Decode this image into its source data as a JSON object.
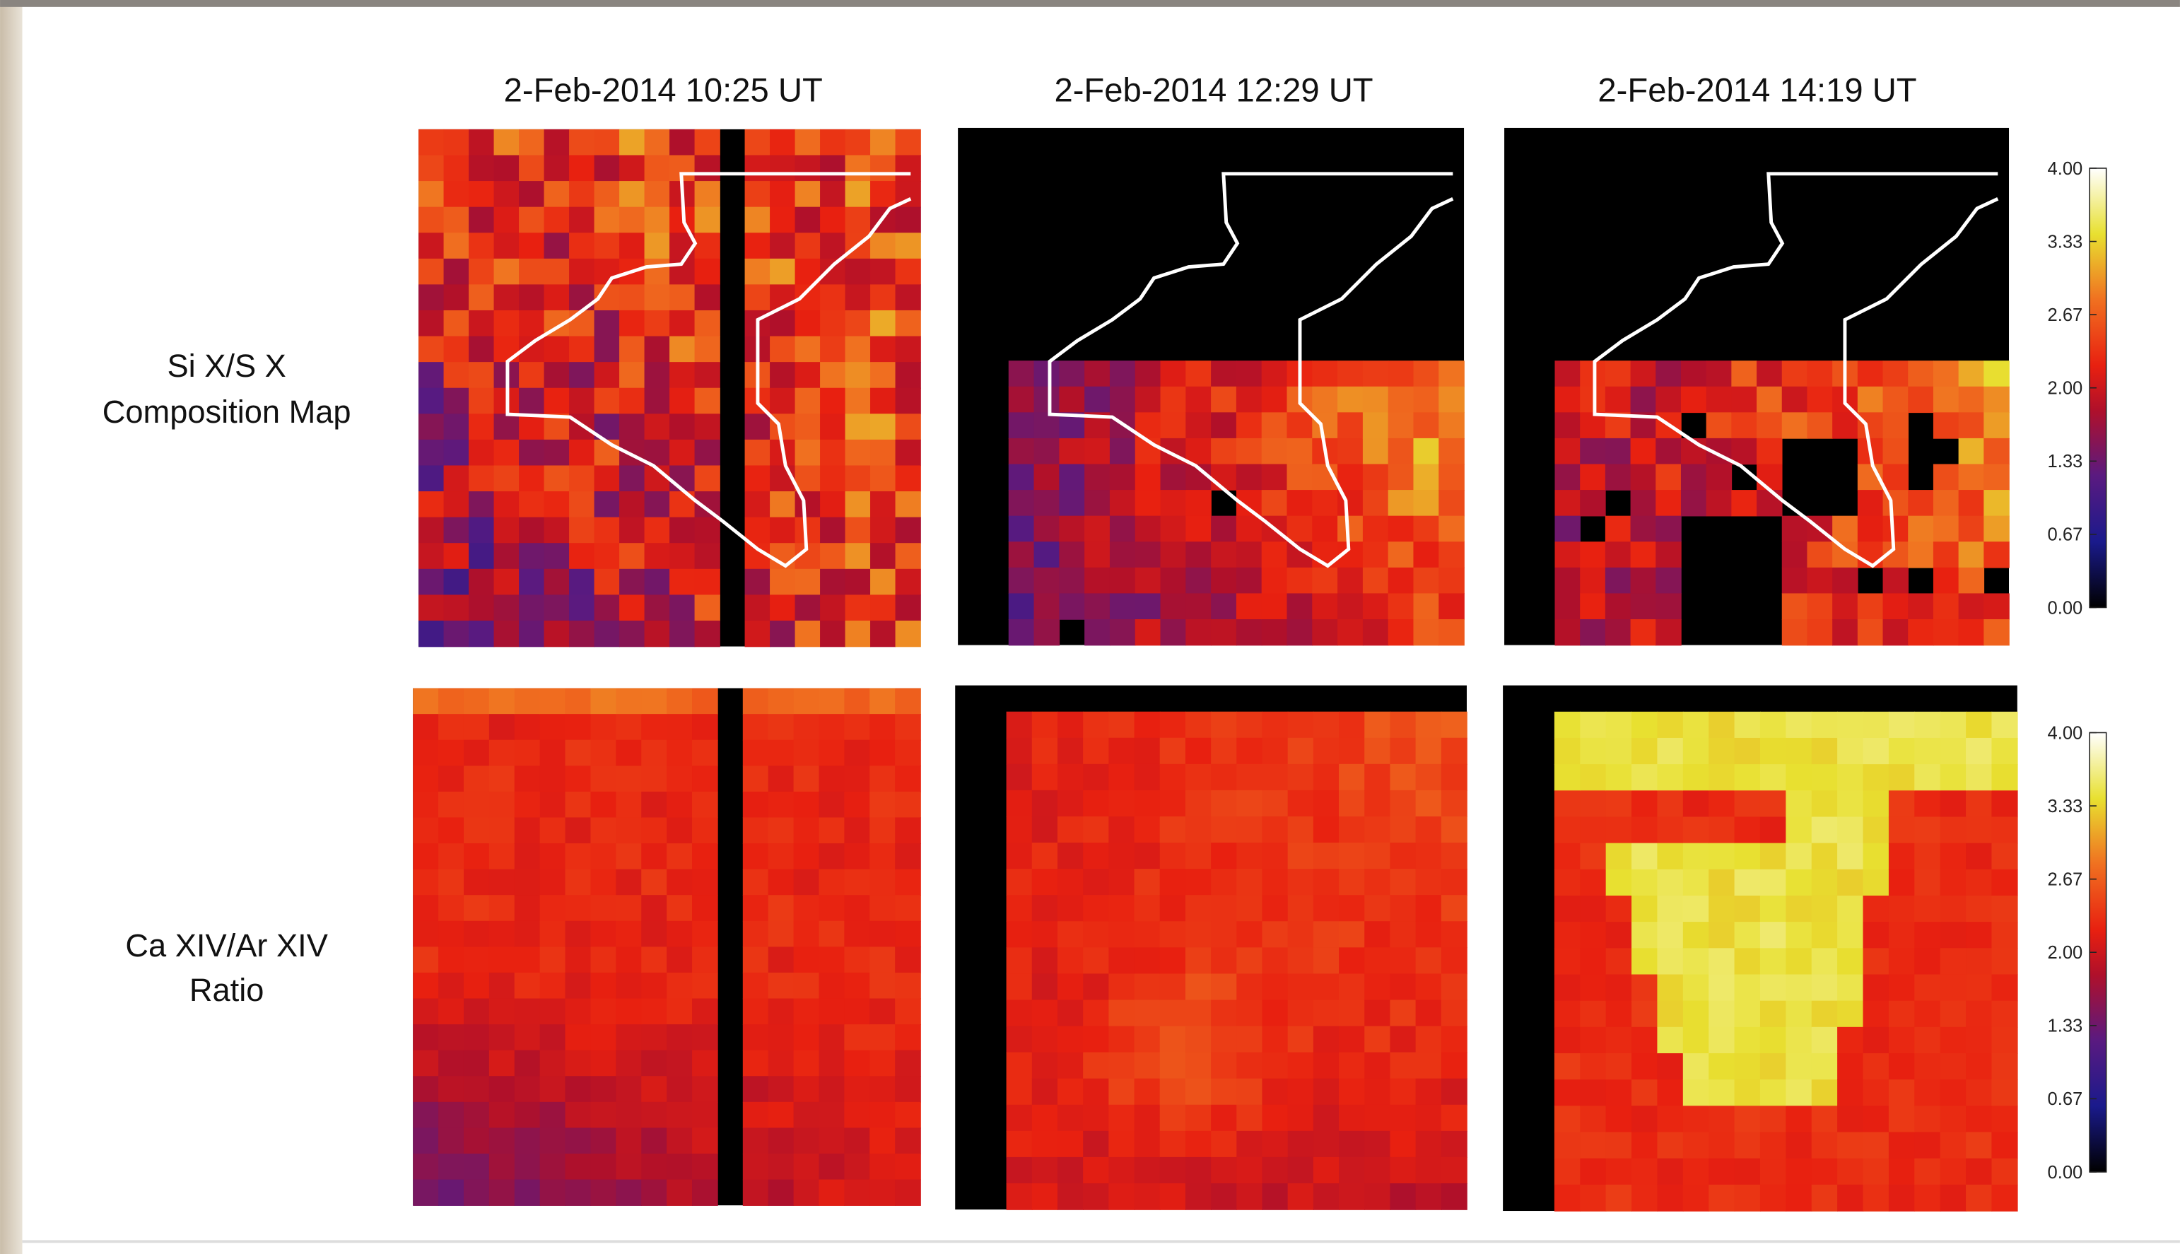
{
  "figure": {
    "column_titles": [
      "2-Feb-2014 10:25 UT",
      "2-Feb-2014 12:29 UT",
      "2-Feb-2014 14:19 UT"
    ],
    "row_labels": [
      [
        "Si X/S X",
        "Composition Map"
      ],
      [
        "Ca XIV/Ar XIV",
        "Ratio"
      ]
    ],
    "colorbars": [
      {
        "ticks": [
          "4.00",
          "3.33",
          "2.67",
          "2.00",
          "1.33",
          "0.67",
          "0.00"
        ]
      },
      {
        "ticks": [
          "4.00",
          "3.33",
          "2.67",
          "2.00",
          "1.33",
          "0.67",
          "0.00"
        ]
      }
    ]
  }
}
